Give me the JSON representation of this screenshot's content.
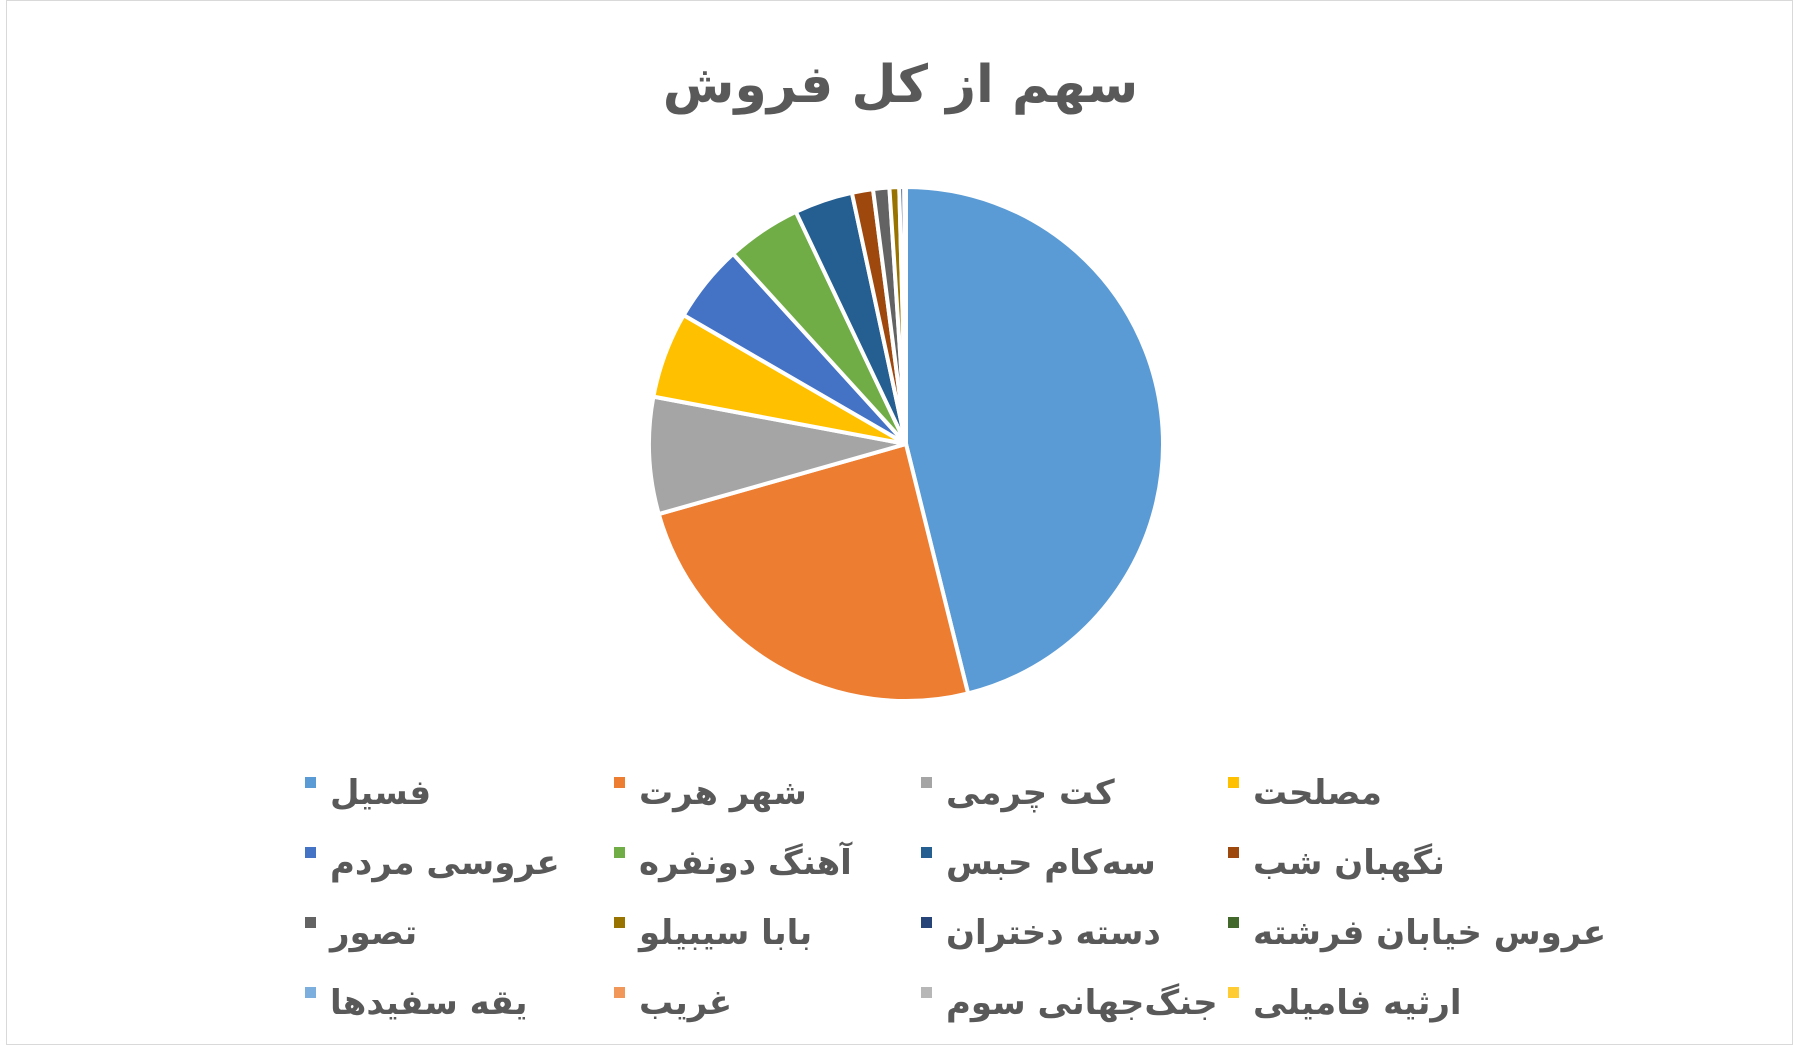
{
  "chart_data": {
    "type": "pie",
    "title": "سهم از کل فروش",
    "slices": [
      {
        "label": "فسیل",
        "value": 45.2,
        "color": "#5B9BD5"
      },
      {
        "label": "شهر هرت",
        "value": 24.0,
        "color": "#ED7D31"
      },
      {
        "label": "کت چرمی",
        "value": 7.2,
        "color": "#A5A5A5"
      },
      {
        "label": "مصلحت",
        "value": 5.3,
        "color": "#FFC000"
      },
      {
        "label": "عروسی مردم",
        "value": 4.8,
        "color": "#4472C4"
      },
      {
        "label": "آهنگ دونفره",
        "value": 4.6,
        "color": "#70AD47"
      },
      {
        "label": "سه‌کام حبس",
        "value": 3.6,
        "color": "#255E91"
      },
      {
        "label": "نگهبان شب",
        "value": 1.3,
        "color": "#9E480E"
      },
      {
        "label": "تصور",
        "value": 1.0,
        "color": "#636363"
      },
      {
        "label": "بابا سیبیلو",
        "value": 0.6,
        "color": "#997300"
      },
      {
        "label": "دسته دختران",
        "value": 0.3,
        "color": "#264478"
      },
      {
        "label": "عروس خیابان فرشته",
        "value": 0.05,
        "color": "#43682B"
      },
      {
        "label": "یقه سفیدها",
        "value": 0.02,
        "color": "#7CAFDD"
      },
      {
        "label": "غریب",
        "value": 0.02,
        "color": "#F1975A"
      },
      {
        "label": "جنگ‌جهانی سوم",
        "value": 0.01,
        "color": "#B7B7B7"
      },
      {
        "label": "ارثیه فامیلی",
        "value": 0.01,
        "color": "#FFCD33"
      }
    ],
    "legend_position": "bottom"
  }
}
